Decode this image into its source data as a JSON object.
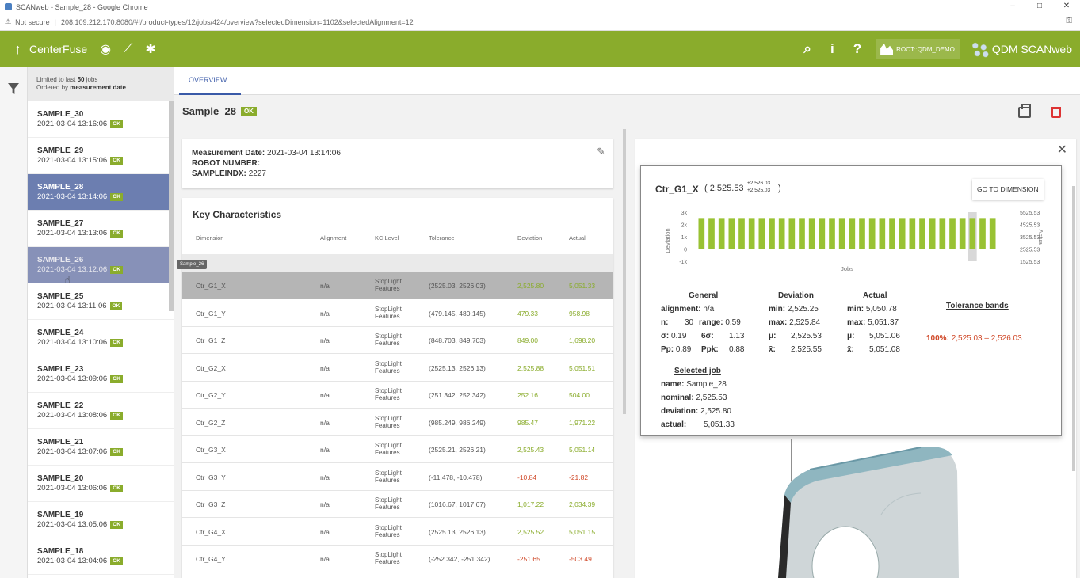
{
  "window": {
    "title": "SCANweb - Sample_28 - Google Chrome",
    "min": "–",
    "max": "□",
    "close": "✕"
  },
  "address": {
    "security": "Not secure",
    "url": "208.109.212.170:8080/#!/product-types/12/jobs/424/overview?selectedDimension=1102&selectedAlignment=12"
  },
  "appbar": {
    "brand": "CenterFuse",
    "user": "ROOT::QDM_DEMO",
    "product": "QDM SCANweb"
  },
  "jobs": {
    "limit_prefix": "Limited to last ",
    "limit_count": "50",
    "limit_suffix": " jobs",
    "order_prefix": "Ordered by ",
    "order_field": "measurement date",
    "items": [
      {
        "name": "SAMPLE_30",
        "date": "2021-03-04 13:16:06",
        "status": "OK"
      },
      {
        "name": "SAMPLE_29",
        "date": "2021-03-04 13:15:06",
        "status": "OK"
      },
      {
        "name": "SAMPLE_28",
        "date": "2021-03-04 13:14:06",
        "status": "OK"
      },
      {
        "name": "SAMPLE_27",
        "date": "2021-03-04 13:13:06",
        "status": "OK"
      },
      {
        "name": "SAMPLE_26",
        "date": "2021-03-04 13:12:06",
        "status": "OK"
      },
      {
        "name": "SAMPLE_25",
        "date": "2021-03-04 13:11:06",
        "status": "OK"
      },
      {
        "name": "SAMPLE_24",
        "date": "2021-03-04 13:10:06",
        "status": "OK"
      },
      {
        "name": "SAMPLE_23",
        "date": "2021-03-04 13:09:06",
        "status": "OK"
      },
      {
        "name": "SAMPLE_22",
        "date": "2021-03-04 13:08:06",
        "status": "OK"
      },
      {
        "name": "SAMPLE_21",
        "date": "2021-03-04 13:07:06",
        "status": "OK"
      },
      {
        "name": "SAMPLE_20",
        "date": "2021-03-04 13:06:06",
        "status": "OK"
      },
      {
        "name": "SAMPLE_19",
        "date": "2021-03-04 13:05:06",
        "status": "OK"
      },
      {
        "name": "SAMPLE_18",
        "date": "2021-03-04 13:04:06",
        "status": "OK"
      }
    ],
    "tooltip": "Sample_26"
  },
  "tab": "OVERVIEW",
  "job": {
    "title": "Sample_28",
    "status": "OK"
  },
  "meas": {
    "date_label": "Measurement Date:",
    "date_value": "2021-03-04 13:14:06",
    "robot_label": "ROBOT NUMBER:",
    "sample_label": "SAMPLEINDX:",
    "sample_value": "2227"
  },
  "kc": {
    "title": "Key Characteristics",
    "headers": [
      "Dimension",
      "Alignment",
      "KC Level",
      "Tolerance",
      "Deviation",
      "Actual"
    ],
    "rows": [
      {
        "dim": "Ctr_G1_X",
        "align": "n/a",
        "kc1": "StopLight",
        "kc2": "Features",
        "tol": "(2525.03, 2526.03)",
        "dev": "2,525.80",
        "act": "5,051.33",
        "color": "green"
      },
      {
        "dim": "Ctr_G1_Y",
        "align": "n/a",
        "kc1": "StopLight",
        "kc2": "Features",
        "tol": "(479.145, 480.145)",
        "dev": "479.33",
        "act": "958.98",
        "color": "green"
      },
      {
        "dim": "Ctr_G1_Z",
        "align": "n/a",
        "kc1": "StopLight",
        "kc2": "Features",
        "tol": "(848.703, 849.703)",
        "dev": "849.00",
        "act": "1,698.20",
        "color": "green"
      },
      {
        "dim": "Ctr_G2_X",
        "align": "n/a",
        "kc1": "StopLight",
        "kc2": "Features",
        "tol": "(2525.13, 2526.13)",
        "dev": "2,525.88",
        "act": "5,051.51",
        "color": "green"
      },
      {
        "dim": "Ctr_G2_Y",
        "align": "n/a",
        "kc1": "StopLight",
        "kc2": "Features",
        "tol": "(251.342, 252.342)",
        "dev": "252.16",
        "act": "504.00",
        "color": "green"
      },
      {
        "dim": "Ctr_G2_Z",
        "align": "n/a",
        "kc1": "StopLight",
        "kc2": "Features",
        "tol": "(985.249, 986.249)",
        "dev": "985.47",
        "act": "1,971.22",
        "color": "green"
      },
      {
        "dim": "Ctr_G3_X",
        "align": "n/a",
        "kc1": "StopLight",
        "kc2": "Features",
        "tol": "(2525.21, 2526.21)",
        "dev": "2,525.43",
        "act": "5,051.14",
        "color": "green"
      },
      {
        "dim": "Ctr_G3_Y",
        "align": "n/a",
        "kc1": "StopLight",
        "kc2": "Features",
        "tol": "(-11.478, -10.478)",
        "dev": "-10.84",
        "act": "-21.82",
        "color": "red"
      },
      {
        "dim": "Ctr_G3_Z",
        "align": "n/a",
        "kc1": "StopLight",
        "kc2": "Features",
        "tol": "(1016.67, 1017.67)",
        "dev": "1,017.22",
        "act": "2,034.39",
        "color": "green"
      },
      {
        "dim": "Ctr_G4_X",
        "align": "n/a",
        "kc1": "StopLight",
        "kc2": "Features",
        "tol": "(2525.13, 2526.13)",
        "dev": "2,525.52",
        "act": "5,051.15",
        "color": "green"
      },
      {
        "dim": "Ctr_G4_Y",
        "align": "n/a",
        "kc1": "StopLight",
        "kc2": "Features",
        "tol": "(-252.342, -251.342)",
        "dev": "-251.65",
        "act": "-503.49",
        "color": "red"
      }
    ]
  },
  "detail": {
    "dim": "Ctr_G1_X",
    "paren_open": "(",
    "nominal": "2,525.53",
    "tol_upper": "+2,526.03",
    "tol_lower": "+2,525.03",
    "paren_close": ")",
    "goto": "GO TO DIMENSION",
    "general": {
      "heading": "General",
      "alignment_label": "alignment:",
      "alignment_value": "n/a",
      "n_label": "n:",
      "n_value": "30",
      "range_label": "range:",
      "range_value": "0.59",
      "sigma_label": "σ:",
      "sigma_value": "0.19",
      "six_sigma_label": "6σ:",
      "six_sigma_value": "1.13",
      "pp_label": "Pp:",
      "pp_value": "0.89",
      "ppk_label": "Ppk:",
      "ppk_value": "0.88"
    },
    "deviation": {
      "heading": "Deviation",
      "min_label": "min:",
      "min": "2,525.25",
      "max_label": "max:",
      "max": "2,525.84",
      "mu_label": "μ:",
      "mu": "2,525.53",
      "xbar_label": "x̄:",
      "xbar": "2,525.55"
    },
    "actual": {
      "heading": "Actual",
      "min_label": "min:",
      "min": "5,050.78",
      "max_label": "max:",
      "max": "5,051.37",
      "mu_label": "μ:",
      "mu": "5,051.06",
      "xbar_label": "x̄:",
      "xbar": "5,051.08"
    },
    "tolerance": {
      "heading": "Tolerance bands",
      "pct": "100%:",
      "range": "2,525.03 – 2,526.03"
    },
    "selected": {
      "heading": "Selected job",
      "name_label": "name:",
      "name": "Sample_28",
      "nominal_label": "nominal:",
      "nominal": "2,525.53",
      "deviation_label": "deviation:",
      "deviation": "2,525.80",
      "actual_label": "actual:",
      "actual": "5,051.33"
    }
  },
  "chart_data": {
    "type": "bar",
    "xlabel": "Jobs",
    "ylabel": "Deviation",
    "y2label": "Actual",
    "ylim": [
      -1000,
      3000
    ],
    "yticks": [
      "3k",
      "2k",
      "1k",
      "0",
      "-1k"
    ],
    "y2ticks": [
      "5525.53",
      "4525.53",
      "3525.53",
      "2525.53",
      "1525.53"
    ],
    "values": [
      2525.53,
      2525.4,
      2525.6,
      2525.5,
      2525.7,
      2525.3,
      2525.6,
      2525.5,
      2525.4,
      2525.6,
      2525.5,
      2525.7,
      2525.4,
      2525.6,
      2525.5,
      2525.3,
      2525.6,
      2525.5,
      2525.7,
      2525.4,
      2525.6,
      2525.5,
      2525.4,
      2525.6,
      2525.5,
      2525.7,
      2525.4,
      2525.8,
      2525.5,
      2525.6
    ],
    "selected_index": 27,
    "bar_color": "#99c233",
    "selected_color": "#d8d8d8"
  }
}
